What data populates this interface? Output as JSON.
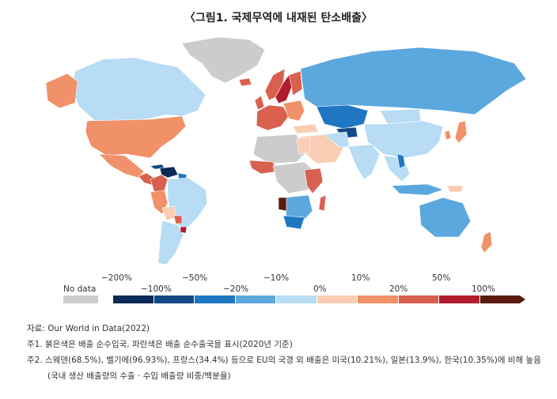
{
  "title": "〈그림1. 국제무역에 내재된 탄소배출〉",
  "legend": {
    "no_data_label": "No data",
    "labels_top": [
      "−200%",
      "−50%",
      "−10%",
      "10%",
      "50%"
    ],
    "labels_top_2": [
      "100%"
    ],
    "labels_bottom": [
      "−100%",
      "−20%",
      "0%",
      "20%"
    ],
    "colors": [
      "#0b2a55",
      "#134a86",
      "#1f77c2",
      "#5ba8de",
      "#b7dcf3",
      "#f9cdb3",
      "#f0916a",
      "#d9604f",
      "#b01e2d",
      "#5a1a0c"
    ],
    "no_data_color": "#cccccc"
  },
  "notes": {
    "source": "자료: Our World in Data(2022)",
    "note1": "주1. 붉은색은 배출 순수입국, 파란색은 배출 순수출국을 표시(2020년 기준)",
    "note2": "주2. 스웨덴(68.5%), 벨기에(96.93%), 프랑스(34.4%) 등으로 EU의 국경 외 배출은 미국(10.21%), 일본(13.9%), 한국(10.35%)에 비해 높음",
    "note3": "(국내 생산 배출량의 수출 · 수입 배출량 비중/백분율)"
  }
}
